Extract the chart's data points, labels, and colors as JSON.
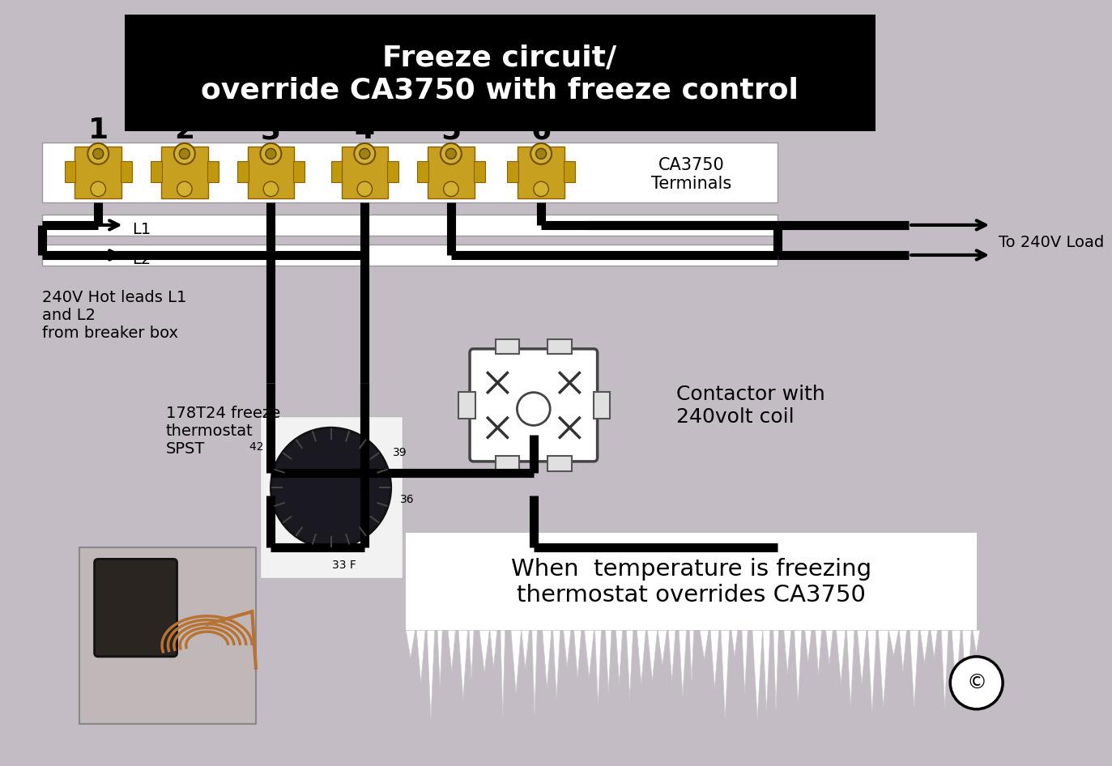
{
  "bg_color": "#c4bcc4",
  "title_text": "Freeze circuit/\noverride CA3750 with freeze control",
  "title_bg": "#000000",
  "title_fg": "#ffffff",
  "terminal_numbers": [
    "1",
    "2",
    "3",
    "4",
    "5",
    "6"
  ],
  "wire_color": "#000000",
  "wire_lw": 8,
  "label_240v": "240V Hot leads L1\nand L2\nfrom breaker box",
  "label_ca3750": "CA3750\nTerminals",
  "label_contactor": "Contactor with\n240volt coil",
  "label_178t24": "178T24 freeze\nthermostat\nSPST",
  "label_freeze_text": "When  temperature is freezing\nthermostat overrides CA3750",
  "label_240v_load": "To 240V Load",
  "l1_label": "L1",
  "l2_label": "L2",
  "copyright": "©"
}
